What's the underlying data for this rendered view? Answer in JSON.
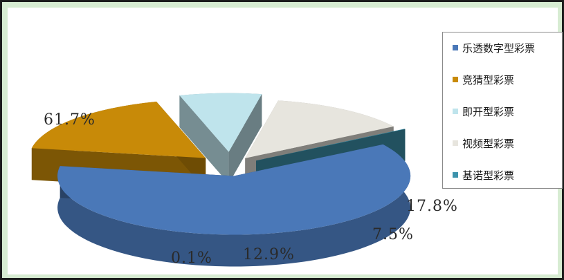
{
  "chart_data": {
    "type": "pie",
    "style": "3d-exploded",
    "categories": [
      "乐透数字型彩票",
      "竞猜型彩票",
      "即开型彩票",
      "视频型彩票",
      "基诺型彩票"
    ],
    "values": [
      61.7,
      17.8,
      7.5,
      12.9,
      0.1
    ],
    "labels": [
      "61.7%",
      "17.8%",
      "7.5%",
      "12.9%",
      "0.1%"
    ],
    "colors": [
      "#4a78b8",
      "#c88a08",
      "#bfe4ec",
      "#e7e5de",
      "#3d93ac"
    ],
    "legend_position": "right"
  }
}
